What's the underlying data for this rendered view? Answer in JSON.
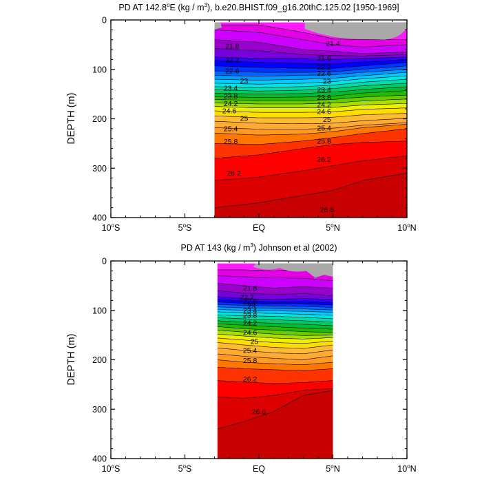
{
  "chart_data": [
    {
      "type": "heatmap",
      "title_parts": [
        "PD AT 142.8",
        "E (kg / m",
        "), b.e20.BHIST.f09_g16.20thC.125.02 [1950-1969]"
      ],
      "title_degree": "o",
      "title_sup": "3",
      "ylabel": "DEPTH (m)",
      "yticks": [
        0,
        100,
        200,
        300,
        400
      ],
      "ytick_labels": [
        "0",
        "100",
        "200",
        "300",
        "400"
      ],
      "xticks": [
        -10,
        -5,
        0,
        5,
        10
      ],
      "xtick_labels": [
        {
          "main": "10",
          "sup": "o",
          "tail": "S"
        },
        {
          "main": "5",
          "sup": "o",
          "tail": "S"
        },
        {
          "main": "EQ",
          "sup": "",
          "tail": ""
        },
        {
          "main": "5",
          "sup": "o",
          "tail": "N"
        },
        {
          "main": "10",
          "sup": "o",
          "tail": "N"
        }
      ],
      "xlim": [
        -10,
        10
      ],
      "ylim": [
        400,
        0
      ],
      "data_extent_lat": [
        -3,
        10
      ],
      "data_top_depth": 5,
      "contour_levels": [
        21.4,
        21.6,
        21.8,
        22.0,
        22.2,
        22.4,
        22.6,
        22.8,
        23.0,
        23.2,
        23.4,
        23.6,
        23.8,
        24.0,
        24.2,
        24.4,
        24.6,
        24.8,
        25.0,
        25.2,
        25.4,
        25.6,
        25.8,
        26.0,
        26.2,
        26.4,
        26.6
      ],
      "isopycnal_depths": {
        "lats": [
          -3,
          0,
          3,
          5,
          7,
          10
        ],
        "depths": {
          "21.4": [
            10,
            10,
            25,
            38,
            40,
            40
          ],
          "21.6": [
            20,
            25,
            40,
            50,
            55,
            50
          ],
          "21.8": [
            40,
            45,
            60,
            63,
            68,
            65
          ],
          "22.0": [
            58,
            62,
            70,
            72,
            73,
            70
          ],
          "22.2": [
            75,
            78,
            78,
            80,
            78,
            75
          ],
          "22.4": [
            82,
            86,
            88,
            89,
            85,
            80
          ],
          "22.6": [
            93,
            96,
            98,
            98,
            93,
            86
          ],
          "22.8": [
            103,
            106,
            106,
            105,
            100,
            93
          ],
          "23.0": [
            112,
            114,
            112,
            111,
            106,
            100
          ],
          "23.2": [
            120,
            122,
            120,
            118,
            113,
            106
          ],
          "23.4": [
            128,
            130,
            128,
            125,
            119,
            113
          ],
          "23.6": [
            135,
            137,
            135,
            132,
            126,
            120
          ],
          "23.8": [
            141,
            144,
            142,
            139,
            133,
            128
          ],
          "24.0": [
            148,
            150,
            149,
            146,
            141,
            135
          ],
          "24.2": [
            155,
            157,
            156,
            154,
            148,
            143
          ],
          "24.4": [
            161,
            163,
            163,
            161,
            156,
            152
          ],
          "24.6": [
            168,
            170,
            170,
            168,
            164,
            160
          ],
          "24.8": [
            175,
            178,
            178,
            177,
            172,
            169
          ],
          "25.0": [
            184,
            187,
            187,
            186,
            181,
            178
          ],
          "25.2": [
            194,
            198,
            198,
            197,
            192,
            189
          ],
          "25.4": [
            205,
            209,
            210,
            209,
            204,
            199
          ],
          "25.6": [
            218,
            221,
            221,
            219,
            213,
            208
          ],
          "25.8": [
            229,
            233,
            231,
            226,
            218,
            211
          ],
          "26.0": [
            250,
            252,
            245,
            238,
            230,
            220
          ],
          "26.2": [
            280,
            273,
            260,
            252,
            248,
            245
          ],
          "26.4": [
            325,
            318,
            305,
            295,
            285,
            275
          ],
          "26.6": [
            380,
            370,
            355,
            345,
            325,
            310
          ]
        }
      },
      "land_mask": "gray regions at surface near 3-10N and near 3S",
      "contour_labels": [
        {
          "text": "21.4",
          "lat": 5.0,
          "depth": 52
        },
        {
          "text": "21.8",
          "lat": -1.8,
          "depth": 58
        },
        {
          "text": "21.8",
          "lat": 4.4,
          "depth": 82
        },
        {
          "text": "22.2",
          "lat": -1.8,
          "depth": 86
        },
        {
          "text": "22.2",
          "lat": 4.4,
          "depth": 100
        },
        {
          "text": "22.6",
          "lat": -1.8,
          "depth": 108
        },
        {
          "text": "22.6",
          "lat": 4.4,
          "depth": 113
        },
        {
          "text": "23",
          "lat": -1.0,
          "depth": 128
        },
        {
          "text": "23",
          "lat": 4.6,
          "depth": 129
        },
        {
          "text": "23.4",
          "lat": -1.9,
          "depth": 143
        },
        {
          "text": "23.4",
          "lat": 4.4,
          "depth": 146
        },
        {
          "text": "23.8",
          "lat": -1.9,
          "depth": 159
        },
        {
          "text": "23.8",
          "lat": 4.4,
          "depth": 162
        },
        {
          "text": "24.2",
          "lat": -1.9,
          "depth": 174
        },
        {
          "text": "24.2",
          "lat": 4.4,
          "depth": 176
        },
        {
          "text": "24.6",
          "lat": -2.0,
          "depth": 189
        },
        {
          "text": "24.6",
          "lat": 4.4,
          "depth": 190
        },
        {
          "text": "25",
          "lat": -1.0,
          "depth": 204
        },
        {
          "text": "25",
          "lat": 4.6,
          "depth": 206
        },
        {
          "text": "25.4",
          "lat": -1.9,
          "depth": 225
        },
        {
          "text": "25.4",
          "lat": 4.4,
          "depth": 224
        },
        {
          "text": "25.8",
          "lat": -1.9,
          "depth": 251
        },
        {
          "text": "25.8",
          "lat": 4.4,
          "depth": 250
        },
        {
          "text": "26.2",
          "lat": -1.7,
          "depth": 315
        },
        {
          "text": "26.2",
          "lat": 4.4,
          "depth": 287
        },
        {
          "text": "26.6",
          "lat": 4.6,
          "depth": 389
        }
      ]
    },
    {
      "type": "heatmap",
      "title_parts": [
        "PD AT 143 (kg / m",
        ") Johnson et al (2002)"
      ],
      "title_degree": "",
      "title_sup": "3",
      "ylabel": "DEPTH (m)",
      "yticks": [
        0,
        100,
        200,
        300,
        400
      ],
      "ytick_labels": [
        "0",
        "100",
        "200",
        "300",
        "400"
      ],
      "xticks": [
        -10,
        -5,
        0,
        5,
        10
      ],
      "xtick_labels": [
        {
          "main": "10",
          "sup": "o",
          "tail": "S"
        },
        {
          "main": "5",
          "sup": "o",
          "tail": "S"
        },
        {
          "main": "EQ",
          "sup": "",
          "tail": ""
        },
        {
          "main": "5",
          "sup": "o",
          "tail": "N"
        },
        {
          "main": "10",
          "sup": "o",
          "tail": "N"
        }
      ],
      "xlim": [
        -10,
        10
      ],
      "ylim": [
        400,
        0
      ],
      "data_extent_lat": [
        -2.8,
        5
      ],
      "data_top_depth": 5,
      "contour_levels": [
        21.4,
        21.6,
        21.8,
        22.0,
        22.2,
        22.4,
        22.6,
        22.8,
        23.0,
        23.2,
        23.4,
        23.6,
        23.8,
        24.0,
        24.2,
        24.4,
        24.6,
        24.8,
        25.0,
        25.2,
        25.4,
        25.6,
        25.8,
        26.0,
        26.2,
        26.4,
        26.6
      ],
      "isopycnal_depths": {
        "lats": [
          -2.8,
          -1,
          1,
          3,
          5
        ],
        "depths": {
          "21.4": [
            18,
            18,
            20,
            17,
            20
          ],
          "21.6": [
            30,
            32,
            34,
            35,
            40
          ],
          "21.8": [
            45,
            50,
            55,
            52,
            55
          ],
          "22.0": [
            60,
            65,
            68,
            66,
            70
          ],
          "22.2": [
            72,
            76,
            78,
            76,
            78
          ],
          "22.4": [
            78,
            81,
            83,
            82,
            84
          ],
          "22.6": [
            83,
            86,
            87,
            87,
            89
          ],
          "22.8": [
            88,
            90,
            91,
            92,
            94
          ],
          "23.0": [
            93,
            95,
            96,
            97,
            99
          ],
          "23.2": [
            98,
            100,
            101,
            102,
            104
          ],
          "23.4": [
            103,
            105,
            106,
            108,
            110
          ],
          "23.6": [
            109,
            111,
            112,
            114,
            117
          ],
          "23.8": [
            115,
            117,
            119,
            121,
            124
          ],
          "24.0": [
            121,
            124,
            126,
            128,
            131
          ],
          "24.2": [
            127,
            130,
            133,
            136,
            138
          ],
          "24.4": [
            133,
            137,
            140,
            143,
            145
          ],
          "24.6": [
            140,
            144,
            148,
            151,
            150
          ],
          "24.8": [
            148,
            152,
            156,
            158,
            155
          ],
          "25.0": [
            156,
            160,
            165,
            167,
            162
          ],
          "25.2": [
            165,
            170,
            175,
            177,
            170
          ],
          "25.4": [
            176,
            181,
            186,
            188,
            180
          ],
          "25.6": [
            188,
            193,
            197,
            200,
            192
          ],
          "25.8": [
            200,
            205,
            208,
            210,
            205
          ],
          "26.0": [
            215,
            218,
            220,
            222,
            218
          ],
          "26.2": [
            242,
            245,
            248,
            246,
            242
          ],
          "26.4": [
            275,
            278,
            272,
            262,
            258
          ],
          "26.6": [
            340,
            325,
            305,
            272,
            262
          ]
        }
      },
      "land_mask": "gray regions at surface near 0-5N",
      "contour_labels": [
        {
          "text": "21.8",
          "lat": -0.6,
          "depth": 60
        },
        {
          "text": "22.2",
          "lat": -0.8,
          "depth": 78
        },
        {
          "text": "22.6",
          "lat": -0.6,
          "depth": 87
        },
        {
          "text": "23",
          "lat": -0.5,
          "depth": 96
        },
        {
          "text": "23.4",
          "lat": -0.6,
          "depth": 105
        },
        {
          "text": "23.8",
          "lat": -0.6,
          "depth": 115
        },
        {
          "text": "24.2",
          "lat": -0.6,
          "depth": 130
        },
        {
          "text": "24.6",
          "lat": -0.6,
          "depth": 150
        },
        {
          "text": "25",
          "lat": -0.3,
          "depth": 168
        },
        {
          "text": "25.4",
          "lat": -0.6,
          "depth": 186
        },
        {
          "text": "25.8",
          "lat": -0.6,
          "depth": 206
        },
        {
          "text": "26.2",
          "lat": -0.6,
          "depth": 244
        },
        {
          "text": "26.6",
          "lat": 0.0,
          "depth": 310
        }
      ]
    }
  ],
  "colors": {
    "density_scale": [
      "#ff1aff",
      "#e600e6",
      "#cc00ff",
      "#9900cc",
      "#7700dd",
      "#3300ff",
      "#0000ff",
      "#0033ff",
      "#0066ff",
      "#0099ff",
      "#00ccff",
      "#00e5e5",
      "#00ddaa",
      "#00cc66",
      "#00bb33",
      "#22bb00",
      "#66cc00",
      "#aadd00",
      "#eeee00",
      "#ffdd00",
      "#ffbb33",
      "#ffaa33",
      "#ff9922",
      "#ff7700",
      "#ff3300",
      "#ff0000",
      "#dd0000",
      "#c80000"
    ],
    "land": "#a9a9a9",
    "axis": "#000000"
  }
}
